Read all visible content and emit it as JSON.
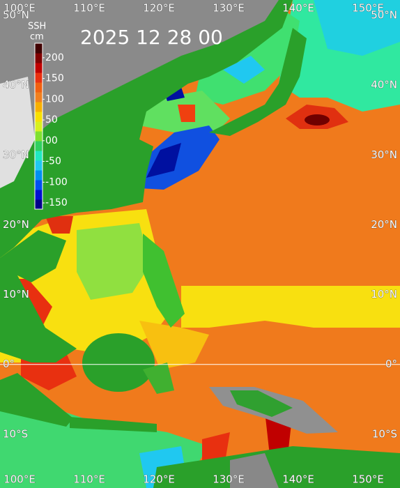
{
  "map": {
    "type": "map",
    "title": "2025 12 28 00",
    "xlim": [
      97.2,
      154.6
    ],
    "ylim": [
      -17.7,
      52.2
    ],
    "xticks": [
      {
        "value": 100,
        "label": "100°E"
      },
      {
        "value": 110,
        "label": "110°E"
      },
      {
        "value": 120,
        "label": "120°E"
      },
      {
        "value": 130,
        "label": "130°E"
      },
      {
        "value": 140,
        "label": "140°E"
      },
      {
        "value": 150,
        "label": "150°E"
      }
    ],
    "yticks": [
      {
        "value": 50,
        "label": "50°N"
      },
      {
        "value": 40,
        "label": "40°N"
      },
      {
        "value": 30,
        "label": "30°N"
      },
      {
        "value": 20,
        "label": "20°N"
      },
      {
        "value": 10,
        "label": "10°N"
      },
      {
        "value": 0,
        "label": "0°"
      },
      {
        "value": -10,
        "label": "10°S"
      }
    ],
    "colorbar": {
      "label": "SSH",
      "unit": "cm",
      "lim": [
        -165,
        235
      ],
      "ticks": [
        200,
        150,
        100,
        50,
        {
          "value": 0,
          "label": "00"
        },
        -50,
        -100,
        -150
      ],
      "colors": [
        "#00008a",
        "#0010d0",
        "#0050f0",
        "#0090f0",
        "#20c8f0",
        "#20e8c0",
        "#30d060",
        "#80e030",
        "#d8f020",
        "#f8e000",
        "#f8b000",
        "#f08020",
        "#f06010",
        "#e83010",
        "#c00000",
        "#800000",
        "#400000"
      ]
    }
  }
}
